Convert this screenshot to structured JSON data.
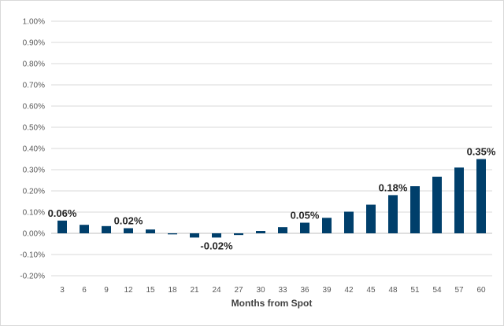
{
  "chart_data": {
    "type": "bar",
    "xlabel": "Months from Spot",
    "ylabel": "",
    "ylim": [
      -0.2,
      1.0
    ],
    "y_ticks": [
      "-0.20%",
      "-0.10%",
      "0.00%",
      "0.10%",
      "0.20%",
      "0.30%",
      "0.40%",
      "0.50%",
      "0.60%",
      "0.70%",
      "0.80%",
      "0.90%",
      "1.00%"
    ],
    "y_tick_values": [
      -0.2,
      -0.1,
      0.0,
      0.1,
      0.2,
      0.3,
      0.4,
      0.5,
      0.6,
      0.7,
      0.8,
      0.9,
      1.0
    ],
    "grid": true,
    "legend": "none",
    "bar_color": "#003f6b",
    "categories": [
      "3",
      "6",
      "9",
      "12",
      "15",
      "18",
      "21",
      "24",
      "27",
      "30",
      "33",
      "36",
      "39",
      "42",
      "45",
      "48",
      "51",
      "54",
      "57",
      "60"
    ],
    "values": [
      0.06,
      0.04,
      0.034,
      0.024,
      0.018,
      -0.005,
      -0.02,
      -0.02,
      -0.008,
      0.011,
      0.029,
      0.05,
      0.073,
      0.102,
      0.135,
      0.18,
      0.222,
      0.267,
      0.31,
      0.35
    ],
    "data_labels": [
      {
        "index": 0,
        "text": "0.06%"
      },
      {
        "index": 3,
        "text": "0.02%"
      },
      {
        "index": 7,
        "text": "-0.02%"
      },
      {
        "index": 11,
        "text": "0.05%"
      },
      {
        "index": 15,
        "text": "0.18%"
      },
      {
        "index": 19,
        "text": "0.35%"
      }
    ]
  }
}
